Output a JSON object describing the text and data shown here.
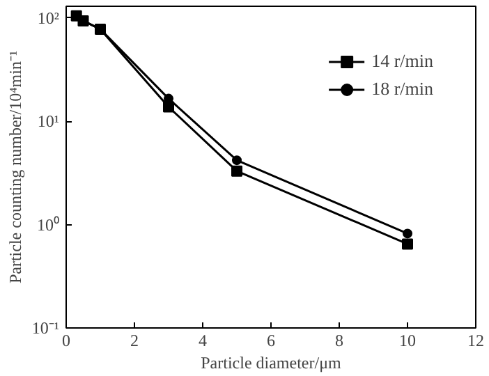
{
  "chart_data": {
    "type": "line",
    "xlabel": "Particle diameter/μm",
    "ylabel": "Particle counting number/10⁴min⁻¹",
    "log": "y",
    "xlim": [
      0,
      12
    ],
    "ylim": [
      0.1,
      130
    ],
    "xticks": [
      0,
      2,
      4,
      6,
      8,
      10,
      12
    ],
    "yticks": [
      {
        "value": 0.1,
        "label": "10⁻¹"
      },
      {
        "value": 1,
        "label": "10⁰"
      },
      {
        "value": 10,
        "label": "10¹"
      },
      {
        "value": 100,
        "label": "10²"
      }
    ],
    "grid": false,
    "legend": "top right",
    "line_style": "solid",
    "series": [
      {
        "name": "14 r/min",
        "color": "#000000",
        "marker": "square",
        "x": [
          0.3,
          0.5,
          1,
          3,
          5,
          10
        ],
        "values": [
          105,
          94,
          78,
          13.8,
          3.3,
          0.65
        ]
      },
      {
        "name": "18 r/min",
        "color": "#000000",
        "marker": "circle",
        "x": [
          0.3,
          0.5,
          1,
          3,
          5,
          10
        ],
        "values": [
          105,
          94,
          78,
          16.6,
          4.2,
          0.82
        ]
      }
    ]
  }
}
